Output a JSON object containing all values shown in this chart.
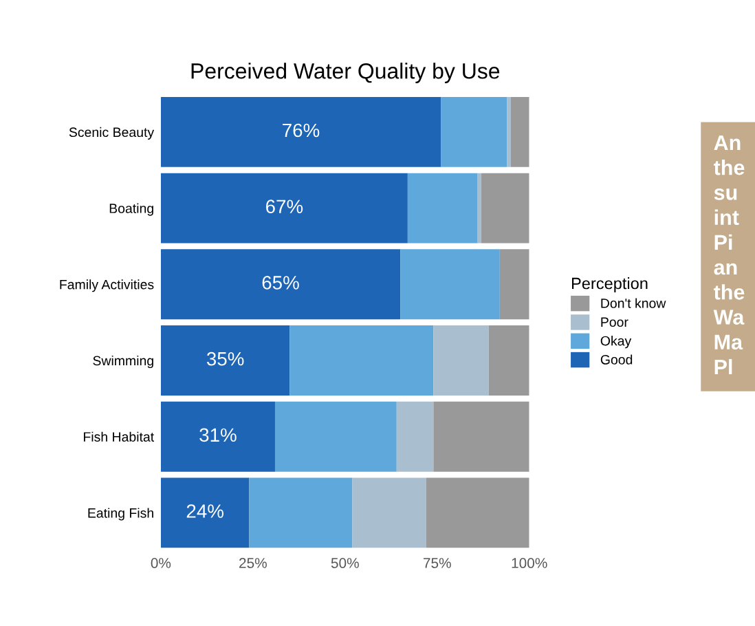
{
  "chart_data": {
    "type": "bar",
    "orientation": "horizontal",
    "stacked": true,
    "title": "Perceived Water Quality by Use",
    "categories": [
      "Scenic Beauty",
      "Boating",
      "Family Activities",
      "Swimming",
      "Fish Habitat",
      "Eating Fish"
    ],
    "series": [
      {
        "name": "Good",
        "color": "#1f65b5",
        "values": [
          76,
          67,
          65,
          35,
          31,
          24
        ],
        "value_labels": [
          "76%",
          "67%",
          "65%",
          "35%",
          "31%",
          "24%"
        ]
      },
      {
        "name": "Okay",
        "color": "#5fa8dc",
        "values": [
          18,
          19,
          27,
          39,
          33,
          28
        ]
      },
      {
        "name": "Poor",
        "color": "#a9bfcf",
        "values": [
          1,
          1,
          0,
          15,
          10,
          20
        ]
      },
      {
        "name": "Don't know",
        "color": "#999999",
        "values": [
          5,
          13,
          8,
          11,
          26,
          28
        ]
      }
    ],
    "xlim": [
      0,
      100
    ],
    "xticks": [
      {
        "value": 0,
        "label": "0%"
      },
      {
        "value": 25,
        "label": "25%"
      },
      {
        "value": 50,
        "label": "50%"
      },
      {
        "value": 75,
        "label": "75%"
      },
      {
        "value": 100,
        "label": "100%"
      }
    ],
    "legend_title": "Perception",
    "legend": "right",
    "grid": false,
    "annotations": [
      "An\nthe\nsu\nint\nPi\nan\nthe\nWa\nMa\nPl"
    ]
  }
}
